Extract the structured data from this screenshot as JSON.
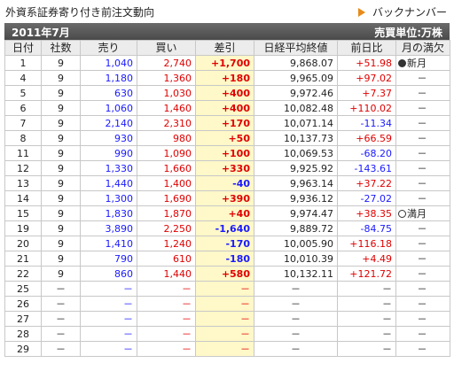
{
  "page": {
    "title": "外資系証券寄り付き前注文動向",
    "back_link": "バックナンバー",
    "month": "2011年7月",
    "unit": "売買単位:万株"
  },
  "colors": {
    "buy": "#e00000",
    "sell": "#1a1aff",
    "diff_bg": "#fff8c8",
    "header_bar": "#555555",
    "arrow": "#e88a1a"
  },
  "table": {
    "headers": [
      "日付",
      "社数",
      "売り",
      "買い",
      "差引",
      "日経平均終値",
      "前日比",
      "月の満欠"
    ],
    "rows": [
      {
        "date": "1",
        "firms": "9",
        "sell": "1,040",
        "buy": "2,740",
        "diff": "+1,700",
        "nikkei": "9,868.07",
        "change": "+51.98",
        "moon": "新月",
        "moon_icon": "new-moon-icon"
      },
      {
        "date": "4",
        "firms": "9",
        "sell": "1,180",
        "buy": "1,360",
        "diff": "+180",
        "nikkei": "9,965.09",
        "change": "+97.02",
        "moon": "－"
      },
      {
        "date": "5",
        "firms": "9",
        "sell": "630",
        "buy": "1,030",
        "diff": "+400",
        "nikkei": "9,972.46",
        "change": "+7.37",
        "moon": "－"
      },
      {
        "date": "6",
        "firms": "9",
        "sell": "1,060",
        "buy": "1,460",
        "diff": "+400",
        "nikkei": "10,082.48",
        "change": "+110.02",
        "moon": "－"
      },
      {
        "date": "7",
        "firms": "9",
        "sell": "2,140",
        "buy": "2,310",
        "diff": "+170",
        "nikkei": "10,071.14",
        "change": "-11.34",
        "moon": "－"
      },
      {
        "date": "8",
        "firms": "9",
        "sell": "930",
        "buy": "980",
        "diff": "+50",
        "nikkei": "10,137.73",
        "change": "+66.59",
        "moon": "－"
      },
      {
        "date": "11",
        "firms": "9",
        "sell": "990",
        "buy": "1,090",
        "diff": "+100",
        "nikkei": "10,069.53",
        "change": "-68.20",
        "moon": "－"
      },
      {
        "date": "12",
        "firms": "9",
        "sell": "1,330",
        "buy": "1,660",
        "diff": "+330",
        "nikkei": "9,925.92",
        "change": "-143.61",
        "moon": "－"
      },
      {
        "date": "13",
        "firms": "9",
        "sell": "1,440",
        "buy": "1,400",
        "diff": "-40",
        "nikkei": "9,963.14",
        "change": "+37.22",
        "moon": "－"
      },
      {
        "date": "14",
        "firms": "9",
        "sell": "1,300",
        "buy": "1,690",
        "diff": "+390",
        "nikkei": "9,936.12",
        "change": "-27.02",
        "moon": "－"
      },
      {
        "date": "15",
        "firms": "9",
        "sell": "1,830",
        "buy": "1,870",
        "diff": "+40",
        "nikkei": "9,974.47",
        "change": "+38.35",
        "moon": "満月",
        "moon_icon": "full-moon-icon"
      },
      {
        "date": "19",
        "firms": "9",
        "sell": "3,890",
        "buy": "2,250",
        "diff": "-1,640",
        "nikkei": "9,889.72",
        "change": "-84.75",
        "moon": "－"
      },
      {
        "date": "20",
        "firms": "9",
        "sell": "1,410",
        "buy": "1,240",
        "diff": "-170",
        "nikkei": "10,005.90",
        "change": "+116.18",
        "moon": "－"
      },
      {
        "date": "21",
        "firms": "9",
        "sell": "790",
        "buy": "610",
        "diff": "-180",
        "nikkei": "10,010.39",
        "change": "+4.49",
        "moon": "－"
      },
      {
        "date": "22",
        "firms": "9",
        "sell": "860",
        "buy": "1,440",
        "diff": "+580",
        "nikkei": "10,132.11",
        "change": "+121.72",
        "moon": "－"
      },
      {
        "date": "25",
        "firms": "－",
        "sell": "－",
        "buy": "－",
        "diff": "－",
        "nikkei": "－",
        "change": "－",
        "moon": "－"
      },
      {
        "date": "26",
        "firms": "－",
        "sell": "－",
        "buy": "－",
        "diff": "－",
        "nikkei": "－",
        "change": "－",
        "moon": "－"
      },
      {
        "date": "27",
        "firms": "－",
        "sell": "－",
        "buy": "－",
        "diff": "－",
        "nikkei": "－",
        "change": "－",
        "moon": "－"
      },
      {
        "date": "28",
        "firms": "－",
        "sell": "－",
        "buy": "－",
        "diff": "－",
        "nikkei": "－",
        "change": "－",
        "moon": "－"
      },
      {
        "date": "29",
        "firms": "－",
        "sell": "－",
        "buy": "－",
        "diff": "－",
        "nikkei": "－",
        "change": "－",
        "moon": "－"
      }
    ]
  }
}
